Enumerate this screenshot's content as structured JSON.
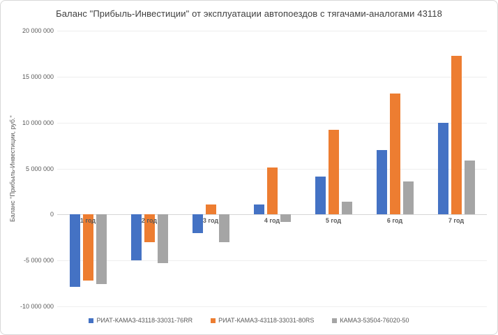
{
  "chart_data": {
    "type": "bar",
    "title": "Баланс \"Прибыль-Инвестиции\" от эксплуатации автопоездов с тягачами-аналогами 43118",
    "ylabel": "Баланс \"Прибыль-Инвестиции, руб.\"",
    "xlabel": "",
    "categories": [
      "1 год",
      "2 год",
      "3 год",
      "4 год",
      "5 год",
      "6 год",
      "7 год"
    ],
    "series": [
      {
        "name": "РИАТ-КАМАЗ-43118-33031-76RR",
        "color": "#4472C4",
        "values": [
          -7900000,
          -5000000,
          -2000000,
          1100000,
          4100000,
          7000000,
          10000000
        ]
      },
      {
        "name": "РИАТ-КАМАЗ-43118-33031-80RS",
        "color": "#ED7D31",
        "values": [
          -7200000,
          -3000000,
          1100000,
          5100000,
          9200000,
          13200000,
          17300000
        ]
      },
      {
        "name": "КАМАЗ-53504-76020-50",
        "color": "#A5A5A5",
        "values": [
          -7600000,
          -5300000,
          -3000000,
          -800000,
          1400000,
          3600000,
          5900000
        ]
      }
    ],
    "ylim": [
      -10000000,
      20000000
    ],
    "yticks": [
      {
        "value": 20000000,
        "label": "20 000 000"
      },
      {
        "value": 15000000,
        "label": "15 000 000"
      },
      {
        "value": 10000000,
        "label": "10 000 000"
      },
      {
        "value": 5000000,
        "label": "5 000 000"
      },
      {
        "value": 0,
        "label": "0"
      },
      {
        "value": -5000000,
        "label": "-5 000 000"
      },
      {
        "value": -10000000,
        "label": "-10 000 000"
      }
    ],
    "grid": true,
    "legend_position": "bottom"
  }
}
